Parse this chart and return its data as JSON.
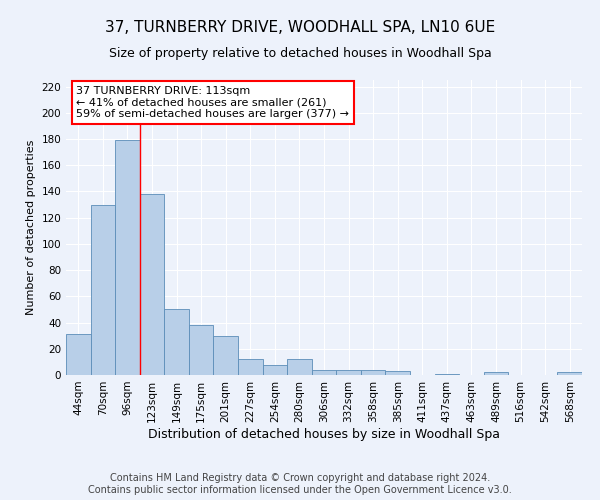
{
  "title": "37, TURNBERRY DRIVE, WOODHALL SPA, LN10 6UE",
  "subtitle": "Size of property relative to detached houses in Woodhall Spa",
  "xlabel": "Distribution of detached houses by size in Woodhall Spa",
  "ylabel": "Number of detached properties",
  "bar_labels": [
    "44sqm",
    "70sqm",
    "96sqm",
    "123sqm",
    "149sqm",
    "175sqm",
    "201sqm",
    "227sqm",
    "254sqm",
    "280sqm",
    "306sqm",
    "332sqm",
    "358sqm",
    "385sqm",
    "411sqm",
    "437sqm",
    "463sqm",
    "489sqm",
    "516sqm",
    "542sqm",
    "568sqm"
  ],
  "bar_values": [
    31,
    130,
    179,
    138,
    50,
    38,
    30,
    12,
    8,
    12,
    4,
    4,
    4,
    3,
    0,
    1,
    0,
    2,
    0,
    0,
    2
  ],
  "bar_color": "#b8cfe8",
  "bar_edge_color": "#5b8db8",
  "background_color": "#edf2fb",
  "grid_color": "#d0daea",
  "ylim": [
    0,
    225
  ],
  "yticks": [
    0,
    20,
    40,
    60,
    80,
    100,
    120,
    140,
    160,
    180,
    200,
    220
  ],
  "annotation_title": "37 TURNBERRY DRIVE: 113sqm",
  "annotation_line1": "← 41% of detached houses are smaller (261)",
  "annotation_line2": "59% of semi-detached houses are larger (377) →",
  "red_line_x": 2.5,
  "footer_line1": "Contains HM Land Registry data © Crown copyright and database right 2024.",
  "footer_line2": "Contains public sector information licensed under the Open Government Licence v3.0.",
  "title_fontsize": 11,
  "subtitle_fontsize": 9,
  "xlabel_fontsize": 9,
  "ylabel_fontsize": 8,
  "tick_fontsize": 7.5,
  "footer_fontsize": 7,
  "annotation_fontsize": 8
}
